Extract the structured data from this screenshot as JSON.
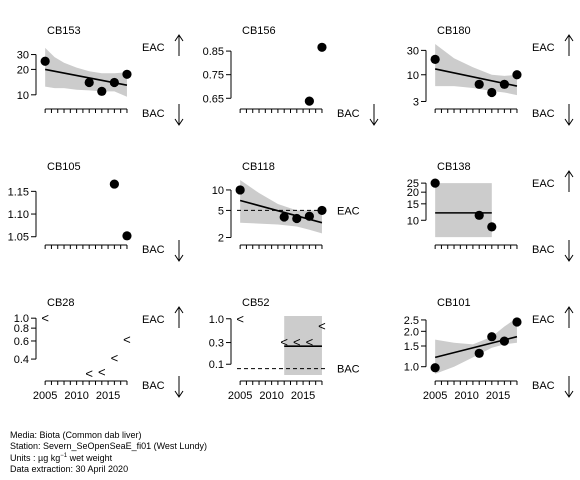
{
  "footer": {
    "media": "Media: Biota (Common dab liver)",
    "station": "Station: Severn_SeOpenSeaE_fi01 (West Lundy)",
    "units_prefix": "Units : ",
    "units_unit": "µg kg",
    "units_exp": "−1",
    "units_suffix": " wet weight",
    "extraction": "Data extraction: 30 April 2020"
  },
  "colors": {
    "band": "#cccccc",
    "ink": "#000000"
  },
  "chart_data": [
    {
      "type": "scatter",
      "title": "CB153",
      "scale": "log",
      "ylim": [
        8,
        40
      ],
      "yticks": [
        {
          "v": 10,
          "l": "10"
        },
        {
          "v": 20,
          "l": "20"
        },
        {
          "v": 30,
          "l": "30"
        }
      ],
      "points": [
        {
          "x": 2005,
          "y": 25
        },
        {
          "x": 2012,
          "y": 14
        },
        {
          "x": 2014,
          "y": 11
        },
        {
          "x": 2016,
          "y": 14
        },
        {
          "x": 2018,
          "y": 17.5
        }
      ],
      "trend": {
        "x": [
          2005,
          2018
        ],
        "y": [
          20,
          13
        ]
      },
      "band": {
        "x": [
          2005,
          2006.5,
          2008,
          2010,
          2012,
          2014,
          2016,
          2018
        ],
        "lo": [
          12.5,
          12,
          12,
          11.5,
          11.3,
          11,
          11,
          9.5
        ],
        "hi": [
          36,
          28,
          24,
          21,
          19,
          18,
          18,
          18.5
        ]
      },
      "top_label": "EAC",
      "bottom_label": "BAC"
    },
    {
      "type": "scatter",
      "title": "CB156",
      "scale": "linear",
      "ylim": [
        0.63,
        0.88
      ],
      "yticks": [
        {
          "v": 0.65,
          "l": "0.65"
        },
        {
          "v": 0.75,
          "l": "0.75"
        },
        {
          "v": 0.85,
          "l": "0.85"
        }
      ],
      "points": [
        {
          "x": 2016,
          "y": 0.638
        },
        {
          "x": 2018,
          "y": 0.866
        }
      ],
      "bottom_label": "BAC"
    },
    {
      "type": "scatter",
      "title": "CB180",
      "scale": "log",
      "ylim": [
        2.8,
        40
      ],
      "yticks": [
        {
          "v": 3,
          "l": "3"
        },
        {
          "v": 10,
          "l": "10"
        },
        {
          "v": 30,
          "l": "30"
        }
      ],
      "points": [
        {
          "x": 2005,
          "y": 20
        },
        {
          "x": 2012,
          "y": 6.5
        },
        {
          "x": 2014,
          "y": 4.5
        },
        {
          "x": 2016,
          "y": 6.5
        },
        {
          "x": 2018,
          "y": 10
        }
      ],
      "trend": {
        "x": [
          2005,
          2018
        ],
        "y": [
          13,
          6
        ]
      },
      "band": {
        "x": [
          2005,
          2008,
          2011,
          2014,
          2016,
          2018
        ],
        "lo": [
          6,
          6,
          5.5,
          4.8,
          4.5,
          4
        ],
        "hi": [
          40,
          21,
          14,
          10,
          9.5,
          10
        ]
      },
      "top_label": "EAC",
      "bottom_label": "BAC"
    },
    {
      "type": "scatter",
      "title": "CB105",
      "scale": "linear",
      "ylim": [
        1.045,
        1.175
      ],
      "yticks": [
        {
          "v": 1.05,
          "l": "1.05"
        },
        {
          "v": 1.1,
          "l": "1.10"
        },
        {
          "v": 1.15,
          "l": "1.15"
        }
      ],
      "points": [
        {
          "x": 2016,
          "y": 1.166
        },
        {
          "x": 2018,
          "y": 1.052
        }
      ],
      "bottom_label": "BAC"
    },
    {
      "type": "scatter",
      "title": "CB118",
      "scale": "log",
      "ylim": [
        1.9,
        14
      ],
      "yticks": [
        {
          "v": 2,
          "l": "2"
        },
        {
          "v": 5,
          "l": "5"
        },
        {
          "v": 10,
          "l": "10"
        }
      ],
      "points": [
        {
          "x": 2005,
          "y": 10
        },
        {
          "x": 2012,
          "y": 4
        },
        {
          "x": 2014,
          "y": 3.8
        },
        {
          "x": 2016,
          "y": 4.1
        },
        {
          "x": 2018,
          "y": 5
        }
      ],
      "trend": {
        "x": [
          2005,
          2018
        ],
        "y": [
          7,
          3.3
        ]
      },
      "band": {
        "x": [
          2005,
          2008,
          2011,
          2014,
          2016,
          2018
        ],
        "lo": [
          3.3,
          3.2,
          3.1,
          2.9,
          2.6,
          2.3
        ],
        "hi": [
          14,
          9,
          6.2,
          5.0,
          5.0,
          5.0
        ]
      },
      "ref_line": {
        "y": 5,
        "label": "EAC"
      }
    },
    {
      "type": "scatter",
      "title": "CB138",
      "scale": "log",
      "ylim": [
        6.3,
        27
      ],
      "yticks": [
        {
          "v": 10,
          "l": "10"
        },
        {
          "v": 15,
          "l": "15"
        },
        {
          "v": 20,
          "l": "20"
        },
        {
          "v": 25,
          "l": "25"
        }
      ],
      "points": [
        {
          "x": 2005,
          "y": 25
        },
        {
          "x": 2012,
          "y": 11.3
        },
        {
          "x": 2014,
          "y": 8.5
        }
      ],
      "trend": {
        "x": [
          2005,
          2014
        ],
        "y": [
          12,
          12
        ]
      },
      "band": {
        "x": [
          2005,
          2014
        ],
        "lo": [
          6.6,
          6.6
        ],
        "hi": [
          25,
          25
        ]
      },
      "top_label": "EAC",
      "bottom_label": "BAC"
    },
    {
      "type": "scatter",
      "title": "CB28",
      "scale": "log",
      "ylim": [
        0.28,
        1.05
      ],
      "yticks": [
        {
          "v": 0.4,
          "l": "0.4"
        },
        {
          "v": 0.6,
          "l": "0.6"
        },
        {
          "v": 0.8,
          "l": "0.8"
        },
        {
          "v": 1.0,
          "l": "1.0"
        }
      ],
      "less_than": [
        {
          "x": 2005,
          "y": 1.0
        },
        {
          "x": 2012,
          "y": 0.29
        },
        {
          "x": 2014,
          "y": 0.3
        },
        {
          "x": 2016,
          "y": 0.41
        },
        {
          "x": 2018,
          "y": 0.62
        }
      ],
      "top_label": "EAC",
      "bottom_label": "BAC"
    },
    {
      "type": "scatter",
      "title": "CB52",
      "scale": "log",
      "ylim": [
        0.058,
        1.15
      ],
      "yticks": [
        {
          "v": 0.1,
          "l": "0.1"
        },
        {
          "v": 0.3,
          "l": "0.3"
        },
        {
          "v": 1.0,
          "l": "1.0"
        }
      ],
      "less_than": [
        {
          "x": 2005,
          "y": 1.0
        },
        {
          "x": 2012,
          "y": 0.31
        },
        {
          "x": 2014,
          "y": 0.31
        },
        {
          "x": 2016,
          "y": 0.31
        },
        {
          "x": 2018,
          "y": 0.7
        }
      ],
      "trend": {
        "x": [
          2012,
          2018
        ],
        "y": [
          0.25,
          0.25
        ]
      },
      "band": {
        "x": [
          2012,
          2018
        ],
        "lo": [
          0.058,
          0.058
        ],
        "hi": [
          1.15,
          1.15
        ]
      },
      "ref_line": {
        "y": 0.08,
        "label": "BAC"
      }
    },
    {
      "type": "scatter",
      "title": "CB101",
      "scale": "log",
      "ylim": [
        0.85,
        2.7
      ],
      "yticks": [
        {
          "v": 1.0,
          "l": "1.0"
        },
        {
          "v": 1.5,
          "l": "1.5"
        },
        {
          "v": 2.0,
          "l": "2.0"
        },
        {
          "v": 2.5,
          "l": "2.5"
        }
      ],
      "points": [
        {
          "x": 2005,
          "y": 0.98
        },
        {
          "x": 2012,
          "y": 1.3
        },
        {
          "x": 2014,
          "y": 1.8
        },
        {
          "x": 2016,
          "y": 1.65
        },
        {
          "x": 2018,
          "y": 2.4
        }
      ],
      "trend": {
        "x": [
          2005,
          2018
        ],
        "y": [
          1.2,
          1.8
        ]
      },
      "band": {
        "x": [
          2005,
          2008,
          2011,
          2014,
          2016,
          2018
        ],
        "lo": [
          0.87,
          1.0,
          1.2,
          1.45,
          1.55,
          1.6
        ],
        "hi": [
          1.7,
          1.6,
          1.55,
          1.8,
          2.2,
          2.6
        ]
      },
      "top_label": "EAC",
      "bottom_label": "BAC"
    }
  ],
  "x_axis": {
    "xlim": [
      2004.5,
      2018.8
    ],
    "ticks": [
      2005,
      2006,
      2007,
      2008,
      2009,
      2010,
      2011,
      2012,
      2013,
      2014,
      2015,
      2016,
      2017,
      2018
    ],
    "labels": [
      2005,
      2010,
      2015
    ]
  }
}
